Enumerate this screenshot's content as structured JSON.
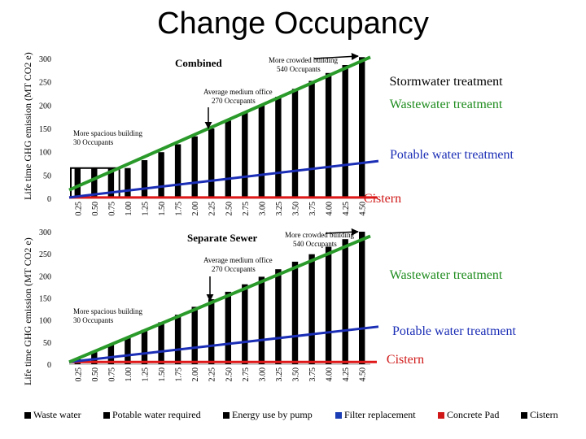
{
  "title": "Change Occupancy",
  "chart_data": [
    {
      "type": "bar",
      "title": "Combined",
      "ylabel": "Life time GHG emission (MT CO2 e)",
      "ylim": [
        0,
        300
      ],
      "yticks": [
        0,
        50,
        100,
        150,
        200,
        250,
        300
      ],
      "categories": [
        "0.25",
        "0.50",
        "0.75",
        "1.00",
        "1.25",
        "1.50",
        "1.75",
        "2.00",
        "2.25",
        "2.50",
        "2.75",
        "3.00",
        "3.25",
        "3.50",
        "3.75",
        "4.00",
        "4.25",
        "4.50"
      ],
      "values": [
        65,
        65,
        65,
        65,
        82,
        99,
        116,
        133,
        150,
        167,
        184,
        201,
        218,
        235,
        252,
        269,
        286,
        303
      ],
      "green_line": [
        18,
        303
      ],
      "blue_line": [
        2,
        80
      ],
      "red_line": [
        2,
        2
      ],
      "annotations": [
        {
          "text1": "More crowded building",
          "text2": "540 Occupants",
          "category": "4.50"
        },
        {
          "text1": "Average medium office",
          "text2": "270 Occupants",
          "category": "2.25"
        },
        {
          "text1": "More spacious building",
          "text2": "30 Occupants",
          "category": "0.25"
        }
      ],
      "labels": [
        {
          "text": "Stormwater treatment",
          "color": "#000000"
        },
        {
          "text": "Wastewater treatment",
          "color": "#1e8c1e"
        },
        {
          "text": "Potable water treatment",
          "color": "#1a2db5"
        },
        {
          "text": "Cistern",
          "color": "#d01818"
        }
      ]
    },
    {
      "type": "bar",
      "title": "Separate Sewer",
      "ylabel": "Life time GHG emission (MT CO2 e)",
      "ylim": [
        0,
        300
      ],
      "yticks": [
        0,
        50,
        100,
        150,
        200,
        250,
        300
      ],
      "categories": [
        "0.25",
        "0.50",
        "0.75",
        "1.00",
        "1.25",
        "1.50",
        "1.75",
        "2.00",
        "2.25",
        "2.50",
        "2.75",
        "3.00",
        "3.25",
        "3.50",
        "3.75",
        "4.00",
        "4.25",
        "4.50"
      ],
      "values": [
        12,
        28,
        44,
        61,
        78,
        95,
        112,
        130,
        147,
        164,
        181,
        198,
        215,
        232,
        249,
        266,
        283,
        300
      ],
      "green_line": [
        5,
        290
      ],
      "blue_line": [
        5,
        85
      ],
      "red_line": [
        5,
        5
      ],
      "annotations": [
        {
          "text1": "More crowded building",
          "text2": "540 Occupants",
          "category": "4.50"
        },
        {
          "text1": "Average medium office",
          "text2": "270 Occupants",
          "category": "2.25"
        },
        {
          "text1": "More spacious building",
          "text2": "30 Occupants",
          "category": "0.25"
        }
      ],
      "labels": [
        {
          "text": "Wastewater treatment",
          "color": "#1e8c1e"
        },
        {
          "text": "Potable water treatment",
          "color": "#1a2db5"
        },
        {
          "text": "Cistern",
          "color": "#d01818"
        }
      ]
    }
  ],
  "legend": [
    {
      "label": "Waste water",
      "color": "#000000"
    },
    {
      "label": "Potable water required",
      "color": "#000000"
    },
    {
      "label": "Energy use by pump",
      "color": "#000000"
    },
    {
      "label": "Filter replacement",
      "color": "#1a3db5"
    },
    {
      "label": "Concrete Pad",
      "color": "#d01818"
    },
    {
      "label": "Cistern",
      "color": "#000000"
    }
  ]
}
